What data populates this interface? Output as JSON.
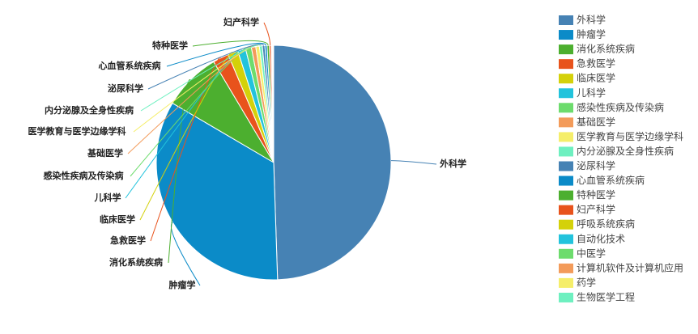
{
  "chart_data": {
    "type": "pie",
    "categories": [
      "外科学",
      "肿瘤学",
      "消化系统疾病",
      "急救医学",
      "临床医学",
      "儿科学",
      "感染性疾病及传染病",
      "基础医学",
      "医学教育与医学边缘学科",
      "内分泌腺及全身性疾病",
      "泌尿科学",
      "心血管系统疾病",
      "特种医学",
      "妇产科学",
      "呼吸系统疾病",
      "自动化技术",
      "中医学",
      "计算机软件及计算机应用",
      "药学",
      "生物医学工程"
    ],
    "values": [
      49.5,
      34,
      8,
      2.2,
      1.4,
      1.1,
      0.8,
      0.6,
      0.5,
      0.4,
      0.35,
      0.3,
      0.3,
      0.25,
      0.1,
      0.05,
      0.05,
      0.05,
      0.05,
      0.05
    ],
    "colors": [
      "#4682b4",
      "#0b8bc8",
      "#4caf2f",
      "#e8531c",
      "#d4d10a",
      "#22c3dc",
      "#6ddc6d",
      "#f39b5a",
      "#f5ee6a",
      "#6ef0c0",
      "#4682b4",
      "#0b8bc8",
      "#4caf2f",
      "#e8531c",
      "#d4d10a",
      "#22c3dc",
      "#6ddc6d",
      "#f39b5a",
      "#f5ee6a",
      "#6ef0c0"
    ],
    "legend": "right"
  }
}
